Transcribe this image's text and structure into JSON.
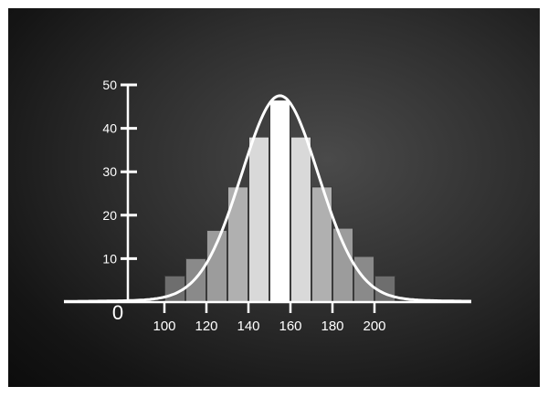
{
  "chart_data": {
    "type": "bar",
    "title": "",
    "xlabel": "",
    "ylabel": "",
    "origin_label": "0",
    "bin_width": 10,
    "bins_start": [
      100,
      110,
      120,
      130,
      140,
      150,
      160,
      170,
      180,
      190,
      200
    ],
    "values": [
      6,
      10,
      16.5,
      26.5,
      38,
      46.5,
      38,
      26.5,
      17,
      10.5,
      6
    ],
    "x_ticks": [
      100,
      120,
      140,
      160,
      180,
      200
    ],
    "y_ticks": [
      10,
      20,
      30,
      40,
      50
    ],
    "ylim": [
      0,
      50
    ],
    "grid": false,
    "overlay": {
      "type": "normal-curve",
      "mean": 155,
      "peak": 47.5
    },
    "colors": {
      "background": "#2a2a2a",
      "axis": "#ffffff",
      "curve": "#ffffff",
      "bars": [
        "#6e6e6e",
        "#8a8a8a",
        "#9c9c9c",
        "#b0b0b0",
        "#d9d9d9",
        "#ffffff",
        "#d9d9d9",
        "#b0b0b0",
        "#9c9c9c",
        "#8a8a8a",
        "#6e6e6e"
      ]
    }
  }
}
